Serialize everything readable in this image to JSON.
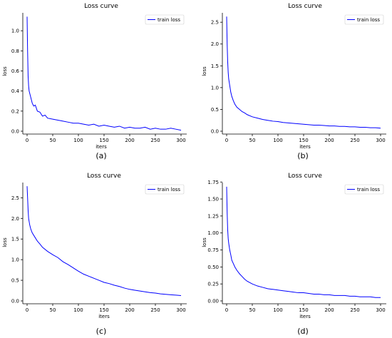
{
  "figure": {
    "panels": [
      {
        "title": "Loss curve",
        "xlabel": "iters",
        "ylabel": "loss",
        "caption": "(a)",
        "legend": "train loss"
      },
      {
        "title": "Loss curve",
        "xlabel": "iters",
        "ylabel": "loss",
        "caption": "(b)",
        "legend": "train loss"
      },
      {
        "title": "Loss curve",
        "xlabel": "iters",
        "ylabel": "loss",
        "caption": "(c)",
        "legend": "train loss"
      },
      {
        "title": "Loss curve",
        "xlabel": "iters",
        "ylabel": "loss",
        "caption": "(d)",
        "legend": "train loss"
      }
    ],
    "line_color": "#0000ff"
  },
  "chart_data": [
    {
      "type": "line",
      "title": "Loss curve",
      "xlabel": "iters",
      "ylabel": "loss",
      "xlim": [
        0,
        300
      ],
      "ylim": [
        0,
        1.15
      ],
      "xticks": [
        0,
        50,
        100,
        150,
        200,
        250,
        300
      ],
      "yticks": [
        0.0,
        0.2,
        0.4,
        0.6,
        0.8,
        1.0
      ],
      "ytick_labels": [
        "0.0",
        "0.2",
        "0.4",
        "0.6",
        "0.8",
        "1.0"
      ],
      "legend_position": "top-right",
      "series": [
        {
          "name": "train loss",
          "color": "#0000ff",
          "x": [
            0,
            1,
            2,
            3,
            4,
            6,
            8,
            10,
            13,
            16,
            20,
            25,
            30,
            35,
            40,
            50,
            60,
            70,
            80,
            90,
            100,
            110,
            120,
            130,
            140,
            150,
            160,
            170,
            180,
            190,
            200,
            210,
            220,
            230,
            240,
            250,
            260,
            270,
            280,
            290,
            300
          ],
          "y": [
            1.14,
            0.8,
            0.55,
            0.45,
            0.4,
            0.36,
            0.32,
            0.28,
            0.25,
            0.26,
            0.2,
            0.19,
            0.15,
            0.16,
            0.13,
            0.12,
            0.11,
            0.1,
            0.09,
            0.08,
            0.08,
            0.07,
            0.06,
            0.07,
            0.05,
            0.06,
            0.05,
            0.04,
            0.05,
            0.03,
            0.04,
            0.03,
            0.03,
            0.04,
            0.02,
            0.03,
            0.02,
            0.02,
            0.03,
            0.02,
            0.01
          ]
        }
      ]
    },
    {
      "type": "line",
      "title": "Loss curve",
      "xlabel": "iters",
      "ylabel": "loss",
      "xlim": [
        0,
        300
      ],
      "ylim": [
        0,
        2.65
      ],
      "xticks": [
        0,
        50,
        100,
        150,
        200,
        250,
        300
      ],
      "yticks": [
        0.0,
        0.5,
        1.0,
        1.5,
        2.0,
        2.5
      ],
      "ytick_labels": [
        "0.0",
        "0.5",
        "1.0",
        "1.5",
        "2.0",
        "2.5"
      ],
      "legend_position": "top-right",
      "series": [
        {
          "name": "train loss",
          "color": "#0000ff",
          "x": [
            0,
            1,
            2,
            3,
            4,
            6,
            8,
            10,
            13,
            16,
            20,
            25,
            30,
            35,
            40,
            50,
            60,
            70,
            80,
            90,
            100,
            110,
            120,
            130,
            140,
            150,
            160,
            170,
            180,
            190,
            200,
            210,
            220,
            230,
            240,
            250,
            260,
            270,
            280,
            290,
            300
          ],
          "y": [
            2.63,
            2.0,
            1.6,
            1.35,
            1.2,
            1.05,
            0.9,
            0.8,
            0.7,
            0.62,
            0.55,
            0.5,
            0.45,
            0.42,
            0.38,
            0.33,
            0.3,
            0.27,
            0.25,
            0.23,
            0.22,
            0.2,
            0.19,
            0.18,
            0.17,
            0.16,
            0.15,
            0.14,
            0.14,
            0.13,
            0.12,
            0.12,
            0.11,
            0.11,
            0.1,
            0.1,
            0.09,
            0.09,
            0.08,
            0.08,
            0.07
          ]
        }
      ]
    },
    {
      "type": "line",
      "title": "Loss curve",
      "xlabel": "iters",
      "ylabel": "loss",
      "xlim": [
        0,
        300
      ],
      "ylim": [
        0,
        2.8
      ],
      "xticks": [
        0,
        50,
        100,
        150,
        200,
        250,
        300
      ],
      "yticks": [
        0.0,
        0.5,
        1.0,
        1.5,
        2.0,
        2.5
      ],
      "ytick_labels": [
        "0.0",
        "0.5",
        "1.0",
        "1.5",
        "2.0",
        "2.5"
      ],
      "legend_position": "top-right",
      "series": [
        {
          "name": "train loss",
          "color": "#0000ff",
          "x": [
            0,
            1,
            2,
            3,
            5,
            7,
            10,
            15,
            20,
            25,
            30,
            40,
            50,
            60,
            70,
            80,
            90,
            100,
            110,
            120,
            130,
            140,
            150,
            160,
            170,
            180,
            190,
            200,
            210,
            220,
            230,
            240,
            250,
            260,
            270,
            280,
            290,
            300
          ],
          "y": [
            2.78,
            2.5,
            2.2,
            2.0,
            1.85,
            1.75,
            1.65,
            1.55,
            1.45,
            1.38,
            1.3,
            1.2,
            1.12,
            1.05,
            0.95,
            0.88,
            0.8,
            0.72,
            0.65,
            0.6,
            0.55,
            0.5,
            0.45,
            0.42,
            0.38,
            0.35,
            0.31,
            0.28,
            0.26,
            0.24,
            0.22,
            0.2,
            0.19,
            0.17,
            0.16,
            0.15,
            0.14,
            0.13
          ]
        }
      ]
    },
    {
      "type": "line",
      "title": "Loss curve",
      "xlabel": "iters",
      "ylabel": "loss",
      "xlim": [
        0,
        300
      ],
      "ylim": [
        0,
        1.7
      ],
      "xticks": [
        0,
        50,
        100,
        150,
        200,
        250,
        300
      ],
      "yticks": [
        0.0,
        0.25,
        0.5,
        0.75,
        1.0,
        1.25,
        1.5,
        1.75
      ],
      "ytick_labels": [
        "0.00",
        "0.25",
        "0.50",
        "0.75",
        "1.00",
        "1.25",
        "1.50",
        "1.75"
      ],
      "legend_position": "top-right",
      "series": [
        {
          "name": "train loss",
          "color": "#0000ff",
          "x": [
            0,
            1,
            2,
            3,
            4,
            6,
            8,
            10,
            13,
            16,
            20,
            25,
            30,
            35,
            40,
            50,
            60,
            70,
            80,
            90,
            100,
            110,
            120,
            130,
            140,
            150,
            160,
            170,
            180,
            190,
            200,
            210,
            220,
            230,
            240,
            250,
            260,
            270,
            280,
            290,
            300
          ],
          "y": [
            1.68,
            1.3,
            1.05,
            0.92,
            0.85,
            0.75,
            0.68,
            0.6,
            0.55,
            0.5,
            0.45,
            0.4,
            0.36,
            0.32,
            0.29,
            0.25,
            0.22,
            0.2,
            0.18,
            0.17,
            0.16,
            0.15,
            0.14,
            0.13,
            0.12,
            0.12,
            0.11,
            0.1,
            0.1,
            0.09,
            0.09,
            0.08,
            0.08,
            0.08,
            0.07,
            0.07,
            0.06,
            0.06,
            0.06,
            0.05,
            0.05
          ]
        }
      ]
    }
  ]
}
